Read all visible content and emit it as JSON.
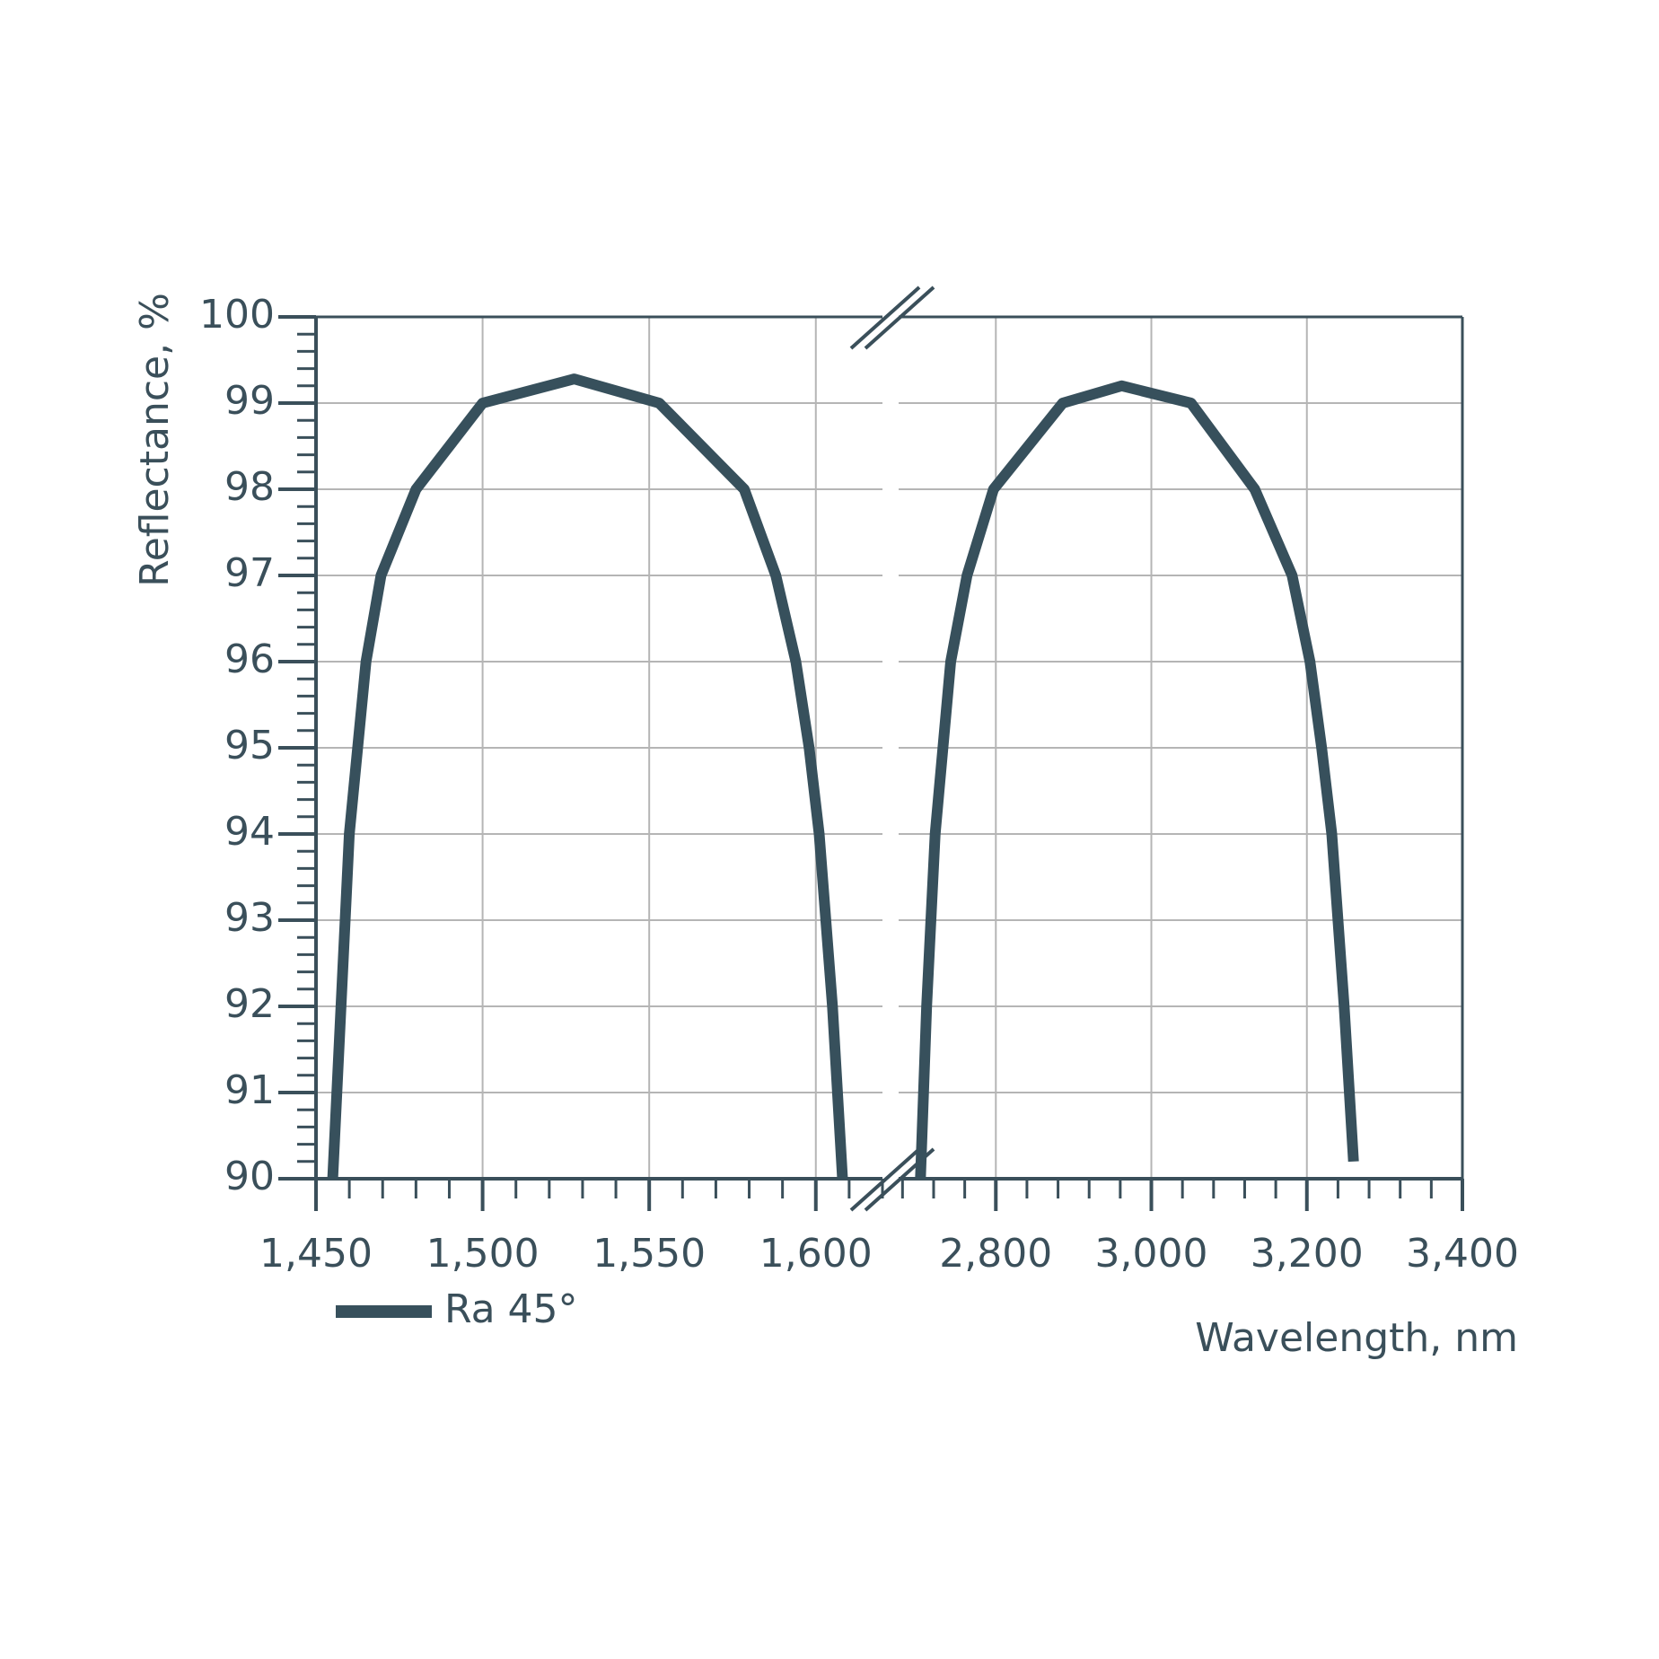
{
  "chart_data": {
    "type": "line",
    "y_label": "Reflectance, %",
    "x_label": "Wavelength, nm",
    "ylim": [
      90,
      100
    ],
    "yticks": [
      90,
      91,
      92,
      93,
      94,
      95,
      96,
      97,
      98,
      99,
      100
    ],
    "y_minor_step": 0.2,
    "panels": [
      {
        "xlim": [
          1450,
          1620
        ],
        "x_minor_step": 10,
        "xticks": [
          {
            "value": 1450,
            "label": "1,450"
          },
          {
            "value": 1500,
            "label": "1,500"
          },
          {
            "value": 1550,
            "label": "1,550"
          },
          {
            "value": 1600,
            "label": "1,600"
          }
        ]
      },
      {
        "xlim": [
          2675,
          3400
        ],
        "x_minor_step": 40,
        "xticks": [
          {
            "value": 2800,
            "label": "2,800"
          },
          {
            "value": 3000,
            "label": "3,000"
          },
          {
            "value": 3200,
            "label": "3,200"
          },
          {
            "value": 3400,
            "label": "3,400"
          }
        ]
      }
    ],
    "grid": true,
    "legend": "bottom-left",
    "series": [
      {
        "name": "Ra 45°",
        "color": "#37505c",
        "x": [
          1455,
          1460,
          1465,
          1469.5,
          1480,
          1500,
          1527.5,
          1553,
          1578.5,
          1588,
          1594,
          1598,
          1601,
          1605,
          1608,
          null,
          2703,
          2711,
          2722,
          2742,
          2763,
          2797,
          2886,
          2962,
          3051,
          3133,
          3181,
          3204,
          3219,
          3232,
          3248,
          3260
        ],
        "values": [
          90,
          94,
          96,
          97,
          98,
          99,
          99.28,
          99,
          98,
          97,
          96,
          95,
          94,
          92,
          90,
          null,
          90,
          92,
          94,
          96,
          97,
          98,
          99,
          99.2,
          99,
          98,
          97,
          96,
          95,
          94,
          92,
          90.2
        ]
      }
    ]
  }
}
